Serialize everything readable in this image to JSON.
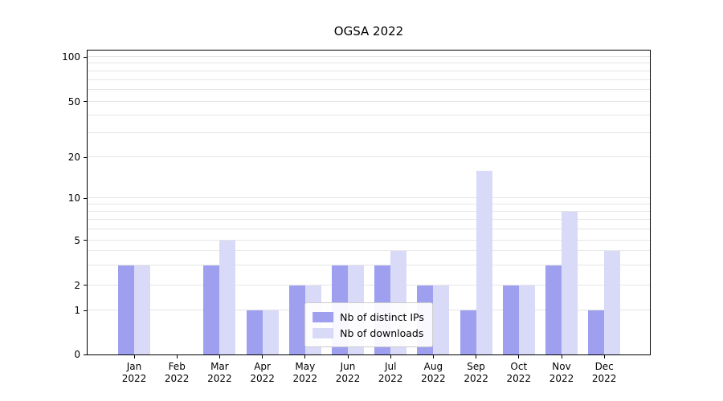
{
  "chart_data": {
    "type": "bar",
    "title": "OGSA 2022",
    "categories": [
      "Jan 2022",
      "Feb 2022",
      "Mar 2022",
      "Apr 2022",
      "May 2022",
      "Jun 2022",
      "Jul 2022",
      "Aug 2022",
      "Sep 2022",
      "Oct 2022",
      "Nov 2022",
      "Dec 2022"
    ],
    "series": [
      {
        "name": "Nb of distinct IPs",
        "color": "#9f9ff0",
        "values": [
          3,
          0,
          3,
          1,
          2,
          3,
          3,
          2,
          1,
          2,
          3,
          1
        ]
      },
      {
        "name": "Nb of downloads",
        "color": "#d9d9f8",
        "values": [
          3,
          0,
          5,
          1,
          2,
          3,
          4,
          2,
          16,
          2,
          8,
          4
        ]
      }
    ],
    "xlabel": "",
    "ylabel": "",
    "yscale": "symlog",
    "ylim": [
      0,
      100
    ],
    "yticks": [
      0,
      1,
      2,
      5,
      10,
      20,
      50,
      100
    ],
    "minor_grid_values": [
      2,
      3,
      4,
      5,
      6,
      7,
      8,
      9,
      20,
      30,
      40,
      50,
      60,
      70,
      80,
      90
    ],
    "scale_anchors": [
      [
        0,
        0
      ],
      [
        1,
        0.144
      ],
      [
        2,
        0.228
      ],
      [
        5,
        0.375
      ],
      [
        10,
        0.514
      ],
      [
        20,
        0.648
      ],
      [
        50,
        0.832
      ],
      [
        100,
        0.979
      ]
    ],
    "grid": true,
    "legend_position": "lower center"
  },
  "colors": {
    "grid": "#e5e5e5",
    "axis": "#000000",
    "legend_border": "#cccccc",
    "background": "#ffffff"
  }
}
